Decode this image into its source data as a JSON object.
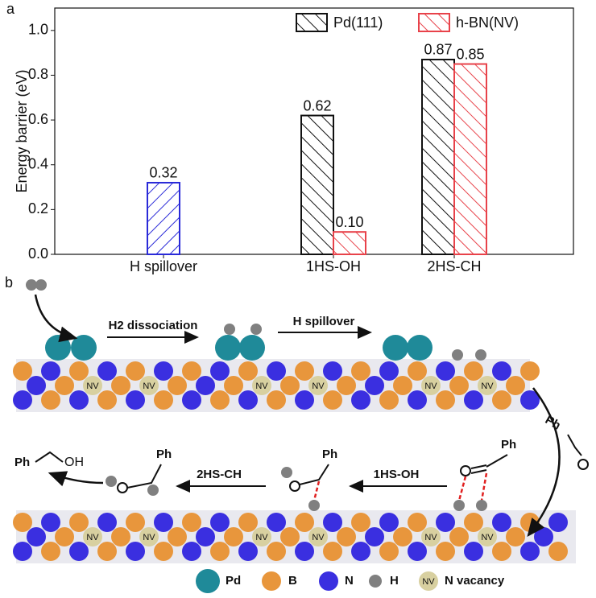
{
  "chart_data": {
    "type": "bar",
    "panel_label": "a",
    "y_label": "Energy barrier (eV)",
    "categories": [
      "H spillover",
      "1HS-OH",
      "2HS-CH"
    ],
    "series": [
      {
        "name": "Pd(111)",
        "color": "#111111",
        "values": [
          null,
          0.62,
          0.87
        ],
        "value_labels": [
          null,
          "0.62",
          "0.87"
        ]
      },
      {
        "name": "h-BN(NV)",
        "color": "#e8424a",
        "values": [
          null,
          0.1,
          0.85
        ],
        "value_labels": [
          null,
          "0.10",
          "0.85"
        ]
      },
      {
        "color": "#2a2ad8",
        "values": [
          0.32,
          null,
          null
        ],
        "value_labels": [
          "0.32",
          null,
          null
        ]
      }
    ],
    "ylim": [
      0,
      1.1
    ],
    "yticks": [
      {
        "value": 0,
        "label": "0.0"
      },
      0.2,
      0.4,
      0.6,
      0.8,
      {
        "value": 1,
        "label": "1.0"
      }
    ],
    "legend": "upper right"
  },
  "diagram": {
    "panel_label": "b",
    "steps": [
      "H2 dissociation",
      "H spillover",
      "1HS-OH",
      "2HS-CH"
    ],
    "ph": "Ph",
    "oh": "OH",
    "vacancy_label": "NV",
    "legend": [
      "Pd",
      "B",
      "N",
      "H",
      "N vacancy"
    ]
  }
}
